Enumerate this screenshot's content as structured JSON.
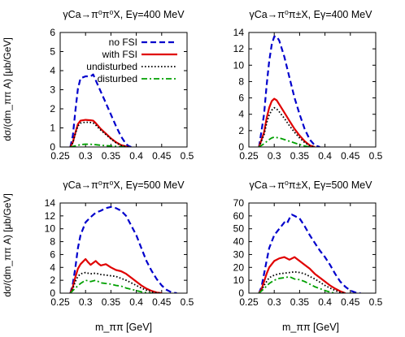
{
  "figure": {
    "ylabel": "dσ/(dm_ππ A) [μb/GeV]",
    "xlabel": "m_ππ [GeV]"
  },
  "legend": {
    "entries": [
      {
        "key": "nofsi",
        "label": "no FSI"
      },
      {
        "key": "withfsi",
        "label": "with FSI"
      },
      {
        "key": "undist",
        "label": "undisturbed"
      },
      {
        "key": "dist",
        "label": "disturbed"
      }
    ],
    "placement": "top-right of panel 1"
  },
  "styles": {
    "nofsi": {
      "color": "#0000cc",
      "dash": "7,4",
      "width": 2.2
    },
    "withfsi": {
      "color": "#e00000",
      "dash": "",
      "width": 2.2
    },
    "undist": {
      "color": "#000000",
      "dash": "1.6,2.4",
      "width": 1.8
    },
    "dist": {
      "color": "#00a000",
      "dash": "7,3,2,3",
      "width": 1.8
    }
  },
  "chart_data": [
    {
      "type": "line",
      "title": "γCa→π⁰π⁰X, Eγ=400 MeV",
      "xlim": [
        0.25,
        0.5
      ],
      "ylim": [
        0,
        6
      ],
      "xticks": [
        0.25,
        0.3,
        0.35,
        0.4,
        0.45,
        0.5
      ],
      "yticks": [
        0,
        1,
        2,
        3,
        4,
        5,
        6
      ],
      "xtick_labels_shown": true,
      "series": [
        {
          "key": "nofsi",
          "name": "no FSI",
          "x": [
            0.27,
            0.275,
            0.28,
            0.285,
            0.29,
            0.3,
            0.31,
            0.315,
            0.32,
            0.33,
            0.34,
            0.35,
            0.36,
            0.37,
            0.375,
            0.38,
            0.385,
            0.39
          ],
          "y": [
            0,
            0.6,
            1.9,
            3.05,
            3.6,
            3.7,
            3.7,
            3.8,
            3.5,
            2.9,
            2.3,
            1.7,
            1.1,
            0.55,
            0.35,
            0.15,
            0.05,
            0
          ]
        },
        {
          "key": "withfsi",
          "name": "with FSI",
          "x": [
            0.27,
            0.275,
            0.28,
            0.285,
            0.29,
            0.3,
            0.31,
            0.315,
            0.32,
            0.33,
            0.34,
            0.35,
            0.36,
            0.37,
            0.38,
            0.385
          ],
          "y": [
            0,
            0.25,
            0.75,
            1.2,
            1.38,
            1.42,
            1.4,
            1.38,
            1.25,
            0.95,
            0.7,
            0.45,
            0.25,
            0.1,
            0.03,
            0
          ]
        },
        {
          "key": "undist",
          "name": "undisturbed",
          "x": [
            0.27,
            0.275,
            0.28,
            0.285,
            0.29,
            0.3,
            0.31,
            0.315,
            0.32,
            0.33,
            0.34,
            0.35,
            0.36,
            0.37,
            0.38,
            0.385
          ],
          "y": [
            0,
            0.22,
            0.7,
            1.1,
            1.25,
            1.3,
            1.28,
            1.26,
            1.15,
            0.88,
            0.65,
            0.42,
            0.22,
            0.08,
            0.02,
            0
          ]
        },
        {
          "key": "dist",
          "name": "disturbed",
          "x": [
            0.27,
            0.28,
            0.29,
            0.3,
            0.31,
            0.32,
            0.33,
            0.35,
            0.37,
            0.38
          ],
          "y": [
            0,
            0.06,
            0.12,
            0.15,
            0.14,
            0.12,
            0.09,
            0.05,
            0.01,
            0
          ]
        }
      ]
    },
    {
      "type": "line",
      "title": "γCa→π⁰π±X, Eγ=400 MeV",
      "xlim": [
        0.25,
        0.5
      ],
      "ylim": [
        0,
        14
      ],
      "xticks": [
        0.25,
        0.3,
        0.35,
        0.4,
        0.45,
        0.5
      ],
      "yticks": [
        0,
        2,
        4,
        6,
        8,
        10,
        12,
        14
      ],
      "xtick_labels_shown": true,
      "series": [
        {
          "key": "nofsi",
          "name": "no FSI",
          "x": [
            0.27,
            0.28,
            0.285,
            0.29,
            0.295,
            0.3,
            0.305,
            0.31,
            0.32,
            0.33,
            0.34,
            0.35,
            0.36,
            0.37,
            0.38,
            0.39
          ],
          "y": [
            0,
            4,
            7.5,
            10.5,
            12.5,
            13.5,
            13.5,
            13,
            11,
            8.5,
            6,
            4,
            2.2,
            0.9,
            0.2,
            0
          ]
        },
        {
          "key": "withfsi",
          "name": "with FSI",
          "x": [
            0.27,
            0.28,
            0.285,
            0.29,
            0.295,
            0.3,
            0.305,
            0.31,
            0.32,
            0.33,
            0.34,
            0.35,
            0.36,
            0.37,
            0.38
          ],
          "y": [
            0,
            1.8,
            3.5,
            4.8,
            5.6,
            5.9,
            5.7,
            5.2,
            4.2,
            3.2,
            2.2,
            1.4,
            0.7,
            0.2,
            0
          ]
        },
        {
          "key": "undist",
          "name": "undisturbed",
          "x": [
            0.27,
            0.28,
            0.285,
            0.29,
            0.295,
            0.3,
            0.305,
            0.31,
            0.32,
            0.33,
            0.34,
            0.35,
            0.36,
            0.37,
            0.38
          ],
          "y": [
            0,
            1.5,
            2.9,
            3.9,
            4.5,
            4.8,
            4.65,
            4.3,
            3.5,
            2.6,
            1.8,
            1.1,
            0.55,
            0.15,
            0
          ]
        },
        {
          "key": "dist",
          "name": "disturbed",
          "x": [
            0.27,
            0.28,
            0.29,
            0.295,
            0.3,
            0.31,
            0.32,
            0.33,
            0.34,
            0.35,
            0.36,
            0.37
          ],
          "y": [
            0,
            0.4,
            0.9,
            1.1,
            1.2,
            1.1,
            0.9,
            0.7,
            0.5,
            0.3,
            0.12,
            0
          ]
        }
      ]
    },
    {
      "type": "line",
      "title": "γCa→π⁰π⁰X, Eγ=500 MeV",
      "xlim": [
        0.25,
        0.5
      ],
      "ylim": [
        0,
        14
      ],
      "xticks": [
        0.25,
        0.3,
        0.35,
        0.4,
        0.45,
        0.5
      ],
      "yticks": [
        0,
        2,
        4,
        6,
        8,
        10,
        12,
        14
      ],
      "xtick_labels_shown": true,
      "series": [
        {
          "key": "nofsi",
          "name": "no FSI",
          "x": [
            0.27,
            0.275,
            0.28,
            0.285,
            0.29,
            0.3,
            0.31,
            0.32,
            0.33,
            0.34,
            0.35,
            0.36,
            0.37,
            0.38,
            0.39,
            0.4,
            0.41,
            0.42,
            0.43,
            0.44,
            0.45,
            0.46,
            0.47,
            0.48
          ],
          "y": [
            0,
            1.5,
            4,
            7,
            9,
            11,
            11.8,
            12.5,
            12.8,
            13.2,
            13.4,
            13.2,
            12.8,
            12,
            10.5,
            9,
            7,
            5,
            3.5,
            2.2,
            1.2,
            0.5,
            0.1,
            0
          ]
        },
        {
          "key": "withfsi",
          "name": "with FSI",
          "x": [
            0.27,
            0.275,
            0.28,
            0.285,
            0.29,
            0.3,
            0.305,
            0.31,
            0.32,
            0.325,
            0.33,
            0.34,
            0.35,
            0.36,
            0.37,
            0.38,
            0.39,
            0.4,
            0.41,
            0.42,
            0.43,
            0.44,
            0.45
          ],
          "y": [
            0,
            1,
            2.5,
            3.8,
            4.5,
            5.3,
            4.8,
            4.4,
            5,
            4.6,
            4.3,
            4.5,
            4,
            3.6,
            3.4,
            3,
            2.4,
            1.8,
            1.2,
            0.7,
            0.35,
            0.1,
            0
          ]
        },
        {
          "key": "undist",
          "name": "undisturbed",
          "x": [
            0.27,
            0.275,
            0.28,
            0.285,
            0.29,
            0.3,
            0.31,
            0.32,
            0.33,
            0.34,
            0.35,
            0.36,
            0.37,
            0.38,
            0.39,
            0.4,
            0.41,
            0.42,
            0.43,
            0.44,
            0.45
          ],
          "y": [
            0,
            0.7,
            1.8,
            2.6,
            3,
            3.2,
            3,
            3.1,
            2.9,
            2.8,
            2.7,
            2.6,
            2.3,
            2,
            1.6,
            1.2,
            0.8,
            0.45,
            0.2,
            0.05,
            0
          ]
        },
        {
          "key": "dist",
          "name": "disturbed",
          "x": [
            0.27,
            0.28,
            0.29,
            0.3,
            0.31,
            0.32,
            0.33,
            0.34,
            0.35,
            0.36,
            0.37,
            0.38,
            0.39,
            0.4,
            0.41,
            0.42,
            0.43
          ],
          "y": [
            0,
            0.8,
            1.5,
            2,
            1.8,
            2,
            1.6,
            1.5,
            1.4,
            1.2,
            1.1,
            0.8,
            0.6,
            0.4,
            0.2,
            0.05,
            0
          ]
        }
      ]
    },
    {
      "type": "line",
      "title": "γCa→π⁰π±X, Eγ=500 MeV",
      "xlim": [
        0.25,
        0.5
      ],
      "ylim": [
        0,
        70
      ],
      "xticks": [
        0.25,
        0.3,
        0.35,
        0.4,
        0.45,
        0.5
      ],
      "yticks": [
        0,
        10,
        20,
        30,
        40,
        50,
        60,
        70
      ],
      "xtick_labels_shown": true,
      "series": [
        {
          "key": "nofsi",
          "name": "no FSI",
          "x": [
            0.27,
            0.275,
            0.28,
            0.285,
            0.29,
            0.3,
            0.31,
            0.32,
            0.325,
            0.33,
            0.335,
            0.34,
            0.35,
            0.36,
            0.37,
            0.38,
            0.39,
            0.4,
            0.41,
            0.42,
            0.43,
            0.44,
            0.45,
            0.46,
            0.47
          ],
          "y": [
            0,
            5,
            15,
            25,
            35,
            45,
            50,
            55,
            54,
            58,
            61,
            60,
            58,
            52,
            45,
            39,
            33,
            28,
            22,
            15,
            9,
            5,
            2,
            0.5,
            0
          ]
        },
        {
          "key": "withfsi",
          "name": "with FSI",
          "x": [
            0.27,
            0.275,
            0.28,
            0.285,
            0.29,
            0.3,
            0.31,
            0.32,
            0.33,
            0.34,
            0.35,
            0.36,
            0.37,
            0.38,
            0.39,
            0.4,
            0.41,
            0.42,
            0.43,
            0.44
          ],
          "y": [
            0,
            3,
            9,
            15,
            20,
            25,
            27,
            28,
            26,
            28,
            25,
            22,
            19,
            15,
            12,
            9,
            6,
            3.5,
            1.5,
            0
          ]
        },
        {
          "key": "undist",
          "name": "undisturbed",
          "x": [
            0.27,
            0.275,
            0.28,
            0.285,
            0.29,
            0.3,
            0.31,
            0.32,
            0.33,
            0.34,
            0.35,
            0.36,
            0.37,
            0.38,
            0.39,
            0.4,
            0.41,
            0.42,
            0.43,
            0.44
          ],
          "y": [
            0,
            2,
            6,
            9,
            12,
            14,
            15,
            15.5,
            16,
            16.5,
            16,
            15,
            13,
            11,
            8.5,
            6,
            4,
            2,
            0.7,
            0
          ]
        },
        {
          "key": "dist",
          "name": "disturbed",
          "x": [
            0.27,
            0.28,
            0.29,
            0.3,
            0.31,
            0.32,
            0.33,
            0.34,
            0.35,
            0.36,
            0.37,
            0.38,
            0.39,
            0.4,
            0.41,
            0.42
          ],
          "y": [
            0,
            3.5,
            7.5,
            10,
            11.5,
            12,
            12.8,
            11,
            10.5,
            9,
            7,
            5,
            3.5,
            2,
            0.8,
            0
          ]
        }
      ]
    }
  ]
}
